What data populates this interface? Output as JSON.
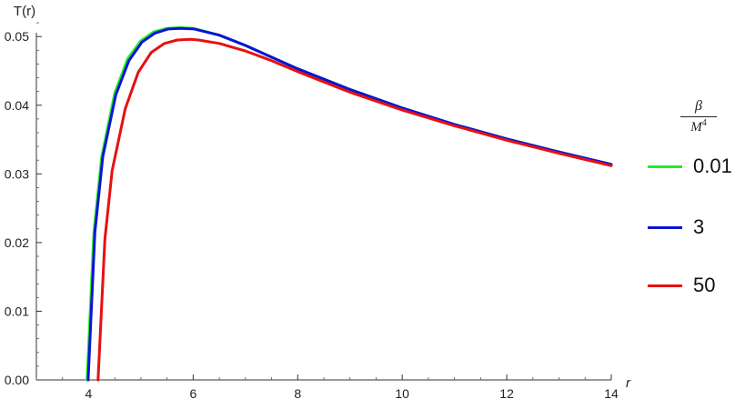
{
  "chart_data": {
    "type": "line",
    "title": "",
    "xlabel": "r",
    "ylabel": "T(r)",
    "xlim": [
      3,
      14
    ],
    "ylim": [
      0,
      0.054
    ],
    "x_ticks": [
      4,
      6,
      8,
      10,
      12,
      14
    ],
    "y_ticks": [
      0.0,
      0.01,
      0.02,
      0.03,
      0.04,
      0.05
    ],
    "x_tick_labels": [
      "4",
      "6",
      "8",
      "10",
      "12",
      "14"
    ],
    "y_tick_labels": [
      "0.00",
      "0.01",
      "0.02",
      "0.03",
      "0.04",
      "0.05"
    ],
    "grid": false,
    "legend_title": {
      "numerator": "β",
      "denominator": "M",
      "denominator_power": "4"
    },
    "legend_position": "right",
    "series": [
      {
        "name": "0.01",
        "color": "#22ee22",
        "x": [
          3.97,
          4.1,
          4.25,
          4.5,
          4.75,
          5.0,
          5.25,
          5.5,
          5.75,
          6.0,
          6.5,
          7.0,
          7.5,
          8.0,
          9.0,
          10.0,
          11.0,
          12.0,
          13.0,
          14.0
        ],
        "y": [
          0.0,
          0.0215,
          0.0325,
          0.0418,
          0.0468,
          0.0494,
          0.0507,
          0.0512,
          0.0513,
          0.0512,
          0.0502,
          0.0487,
          0.047,
          0.0453,
          0.0423,
          0.0396,
          0.0372,
          0.0351,
          0.0332,
          0.0314
        ]
      },
      {
        "name": "3",
        "color": "#0a14d6",
        "x": [
          3.99,
          4.12,
          4.27,
          4.52,
          4.77,
          5.02,
          5.27,
          5.52,
          5.77,
          6.02,
          6.5,
          7.0,
          7.5,
          8.0,
          9.0,
          10.0,
          11.0,
          12.0,
          13.0,
          14.0
        ],
        "y": [
          0.0,
          0.0215,
          0.0325,
          0.0415,
          0.0465,
          0.0492,
          0.0505,
          0.0511,
          0.0512,
          0.0511,
          0.0502,
          0.0487,
          0.047,
          0.0453,
          0.0423,
          0.0396,
          0.0372,
          0.0351,
          0.0332,
          0.0314
        ]
      },
      {
        "name": "50",
        "color": "#e81010",
        "x": [
          4.18,
          4.31,
          4.45,
          4.7,
          4.95,
          5.2,
          5.45,
          5.7,
          5.95,
          6.1,
          6.5,
          7.0,
          7.5,
          8.0,
          9.0,
          10.0,
          11.0,
          12.0,
          13.0,
          14.0
        ],
        "y": [
          0.0,
          0.0205,
          0.0305,
          0.0395,
          0.0448,
          0.0477,
          0.049,
          0.0495,
          0.0496,
          0.0495,
          0.049,
          0.0479,
          0.0465,
          0.0449,
          0.0419,
          0.0393,
          0.037,
          0.0349,
          0.033,
          0.0312
        ]
      }
    ]
  }
}
